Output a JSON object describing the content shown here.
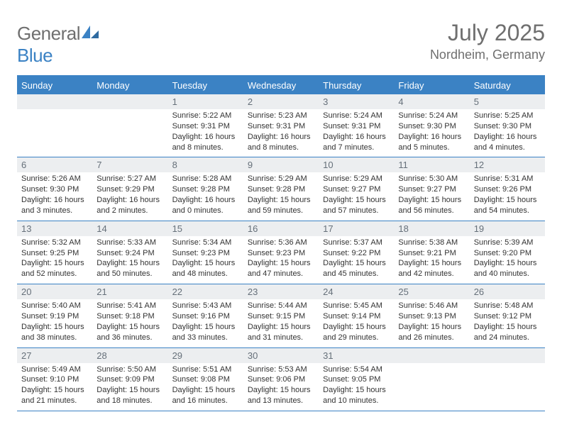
{
  "logo": {
    "general": "General",
    "blue": "Blue"
  },
  "header": {
    "month": "July 2025",
    "location": "Nordheim, Germany"
  },
  "dayNames": [
    "Sunday",
    "Monday",
    "Tuesday",
    "Wednesday",
    "Thursday",
    "Friday",
    "Saturday"
  ],
  "colors": {
    "brand_blue": "#3b82c4",
    "header_gray": "#6f6f6f",
    "daynum_bg": "#eceef0",
    "daynum_text": "#66707a",
    "body_text": "#333333",
    "white": "#ffffff"
  },
  "layout": {
    "firstDayOffset": 2,
    "totalCells": 35
  },
  "days": [
    {
      "n": "1",
      "sunrise": "5:22 AM",
      "sunset": "9:31 PM",
      "daylight": "16 hours and 8 minutes."
    },
    {
      "n": "2",
      "sunrise": "5:23 AM",
      "sunset": "9:31 PM",
      "daylight": "16 hours and 8 minutes."
    },
    {
      "n": "3",
      "sunrise": "5:24 AM",
      "sunset": "9:31 PM",
      "daylight": "16 hours and 7 minutes."
    },
    {
      "n": "4",
      "sunrise": "5:24 AM",
      "sunset": "9:30 PM",
      "daylight": "16 hours and 5 minutes."
    },
    {
      "n": "5",
      "sunrise": "5:25 AM",
      "sunset": "9:30 PM",
      "daylight": "16 hours and 4 minutes."
    },
    {
      "n": "6",
      "sunrise": "5:26 AM",
      "sunset": "9:30 PM",
      "daylight": "16 hours and 3 minutes."
    },
    {
      "n": "7",
      "sunrise": "5:27 AM",
      "sunset": "9:29 PM",
      "daylight": "16 hours and 2 minutes."
    },
    {
      "n": "8",
      "sunrise": "5:28 AM",
      "sunset": "9:28 PM",
      "daylight": "16 hours and 0 minutes."
    },
    {
      "n": "9",
      "sunrise": "5:29 AM",
      "sunset": "9:28 PM",
      "daylight": "15 hours and 59 minutes."
    },
    {
      "n": "10",
      "sunrise": "5:29 AM",
      "sunset": "9:27 PM",
      "daylight": "15 hours and 57 minutes."
    },
    {
      "n": "11",
      "sunrise": "5:30 AM",
      "sunset": "9:27 PM",
      "daylight": "15 hours and 56 minutes."
    },
    {
      "n": "12",
      "sunrise": "5:31 AM",
      "sunset": "9:26 PM",
      "daylight": "15 hours and 54 minutes."
    },
    {
      "n": "13",
      "sunrise": "5:32 AM",
      "sunset": "9:25 PM",
      "daylight": "15 hours and 52 minutes."
    },
    {
      "n": "14",
      "sunrise": "5:33 AM",
      "sunset": "9:24 PM",
      "daylight": "15 hours and 50 minutes."
    },
    {
      "n": "15",
      "sunrise": "5:34 AM",
      "sunset": "9:23 PM",
      "daylight": "15 hours and 48 minutes."
    },
    {
      "n": "16",
      "sunrise": "5:36 AM",
      "sunset": "9:23 PM",
      "daylight": "15 hours and 47 minutes."
    },
    {
      "n": "17",
      "sunrise": "5:37 AM",
      "sunset": "9:22 PM",
      "daylight": "15 hours and 45 minutes."
    },
    {
      "n": "18",
      "sunrise": "5:38 AM",
      "sunset": "9:21 PM",
      "daylight": "15 hours and 42 minutes."
    },
    {
      "n": "19",
      "sunrise": "5:39 AM",
      "sunset": "9:20 PM",
      "daylight": "15 hours and 40 minutes."
    },
    {
      "n": "20",
      "sunrise": "5:40 AM",
      "sunset": "9:19 PM",
      "daylight": "15 hours and 38 minutes."
    },
    {
      "n": "21",
      "sunrise": "5:41 AM",
      "sunset": "9:18 PM",
      "daylight": "15 hours and 36 minutes."
    },
    {
      "n": "22",
      "sunrise": "5:43 AM",
      "sunset": "9:16 PM",
      "daylight": "15 hours and 33 minutes."
    },
    {
      "n": "23",
      "sunrise": "5:44 AM",
      "sunset": "9:15 PM",
      "daylight": "15 hours and 31 minutes."
    },
    {
      "n": "24",
      "sunrise": "5:45 AM",
      "sunset": "9:14 PM",
      "daylight": "15 hours and 29 minutes."
    },
    {
      "n": "25",
      "sunrise": "5:46 AM",
      "sunset": "9:13 PM",
      "daylight": "15 hours and 26 minutes."
    },
    {
      "n": "26",
      "sunrise": "5:48 AM",
      "sunset": "9:12 PM",
      "daylight": "15 hours and 24 minutes."
    },
    {
      "n": "27",
      "sunrise": "5:49 AM",
      "sunset": "9:10 PM",
      "daylight": "15 hours and 21 minutes."
    },
    {
      "n": "28",
      "sunrise": "5:50 AM",
      "sunset": "9:09 PM",
      "daylight": "15 hours and 18 minutes."
    },
    {
      "n": "29",
      "sunrise": "5:51 AM",
      "sunset": "9:08 PM",
      "daylight": "15 hours and 16 minutes."
    },
    {
      "n": "30",
      "sunrise": "5:53 AM",
      "sunset": "9:06 PM",
      "daylight": "15 hours and 13 minutes."
    },
    {
      "n": "31",
      "sunrise": "5:54 AM",
      "sunset": "9:05 PM",
      "daylight": "15 hours and 10 minutes."
    }
  ],
  "labels": {
    "sunrise": "Sunrise: ",
    "sunset": "Sunset: ",
    "daylight": "Daylight: "
  }
}
